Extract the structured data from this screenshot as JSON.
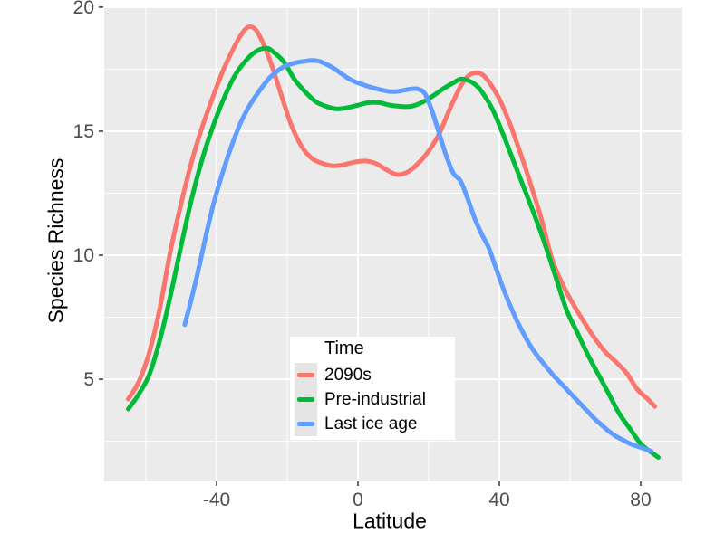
{
  "figure": {
    "background": "#FFFFFF",
    "panel_background": "#EBEBEB",
    "grid_color": "#FFFFFF",
    "tick_color": "#333333",
    "tick_label_color": "#4D4D4D",
    "axis_title_color": "#000000"
  },
  "chart_data": {
    "type": "line",
    "title": "",
    "xlabel": "Latitude",
    "ylabel": "Species Richness",
    "xlim": [
      -71.8,
      91.8
    ],
    "ylim": [
      0.88,
      19.96
    ],
    "x_ticks": [
      -40,
      0,
      40,
      80
    ],
    "x_minor_ticks": [
      -60,
      -20,
      20,
      60
    ],
    "y_ticks": [
      5,
      10,
      15,
      20
    ],
    "y_minor_ticks": [
      2.5,
      7.5,
      12.5,
      17.5
    ],
    "grid": "major-and-minor",
    "legend": {
      "title": "Time",
      "position": "inside bottom-center of panel"
    },
    "series": [
      {
        "name": "2090s",
        "color": "#F8766D",
        "points": [
          [
            -65,
            4.2
          ],
          [
            -62,
            4.9
          ],
          [
            -59,
            6.1
          ],
          [
            -56,
            7.9
          ],
          [
            -53,
            10.2
          ],
          [
            -50,
            12.1
          ],
          [
            -47,
            13.8
          ],
          [
            -44,
            15.2
          ],
          [
            -41,
            16.4
          ],
          [
            -38,
            17.5
          ],
          [
            -35,
            18.4
          ],
          [
            -33,
            18.9
          ],
          [
            -31,
            19.2
          ],
          [
            -29,
            19.1
          ],
          [
            -27,
            18.6
          ],
          [
            -25,
            17.9
          ],
          [
            -22,
            16.6
          ],
          [
            -19,
            15.3
          ],
          [
            -16,
            14.4
          ],
          [
            -13,
            13.9
          ],
          [
            -10,
            13.7
          ],
          [
            -7,
            13.6
          ],
          [
            -4,
            13.65
          ],
          [
            -1,
            13.75
          ],
          [
            2,
            13.8
          ],
          [
            5,
            13.7
          ],
          [
            8,
            13.45
          ],
          [
            11,
            13.25
          ],
          [
            14,
            13.35
          ],
          [
            17,
            13.7
          ],
          [
            20,
            14.2
          ],
          [
            23,
            14.9
          ],
          [
            26,
            15.9
          ],
          [
            29,
            16.8
          ],
          [
            31,
            17.2
          ],
          [
            33,
            17.35
          ],
          [
            35,
            17.3
          ],
          [
            37,
            17.0
          ],
          [
            40,
            16.3
          ],
          [
            43,
            15.3
          ],
          [
            46,
            14.1
          ],
          [
            49,
            12.8
          ],
          [
            52,
            11.4
          ],
          [
            55,
            9.8
          ],
          [
            58,
            8.8
          ],
          [
            61,
            8.0
          ],
          [
            64,
            7.3
          ],
          [
            67,
            6.65
          ],
          [
            70,
            6.1
          ],
          [
            73,
            5.7
          ],
          [
            76,
            5.25
          ],
          [
            79,
            4.6
          ],
          [
            82,
            4.2
          ],
          [
            84,
            3.9
          ]
        ]
      },
      {
        "name": "Pre-industrial",
        "color": "#00BA38",
        "points": [
          [
            -65,
            3.8
          ],
          [
            -62,
            4.4
          ],
          [
            -59,
            5.2
          ],
          [
            -56,
            6.6
          ],
          [
            -53,
            8.4
          ],
          [
            -50,
            10.4
          ],
          [
            -47,
            12.3
          ],
          [
            -44,
            13.9
          ],
          [
            -41,
            15.2
          ],
          [
            -38,
            16.3
          ],
          [
            -35,
            17.2
          ],
          [
            -32,
            17.8
          ],
          [
            -29,
            18.2
          ],
          [
            -26,
            18.35
          ],
          [
            -24,
            18.2
          ],
          [
            -21,
            17.8
          ],
          [
            -18,
            17.1
          ],
          [
            -15,
            16.6
          ],
          [
            -12,
            16.2
          ],
          [
            -9,
            16.0
          ],
          [
            -6,
            15.9
          ],
          [
            -3,
            15.95
          ],
          [
            0,
            16.05
          ],
          [
            3,
            16.15
          ],
          [
            6,
            16.15
          ],
          [
            9,
            16.05
          ],
          [
            12,
            16.0
          ],
          [
            15,
            16.0
          ],
          [
            18,
            16.15
          ],
          [
            21,
            16.4
          ],
          [
            24,
            16.7
          ],
          [
            27,
            16.95
          ],
          [
            29,
            17.1
          ],
          [
            31,
            17.05
          ],
          [
            33,
            16.9
          ],
          [
            35,
            16.6
          ],
          [
            38,
            15.9
          ],
          [
            41,
            14.9
          ],
          [
            44,
            13.8
          ],
          [
            47,
            12.7
          ],
          [
            50,
            11.6
          ],
          [
            53,
            10.4
          ],
          [
            56,
            9.1
          ],
          [
            59,
            7.8
          ],
          [
            62,
            6.9
          ],
          [
            65,
            6.0
          ],
          [
            68,
            5.2
          ],
          [
            71,
            4.4
          ],
          [
            74,
            3.6
          ],
          [
            77,
            3.0
          ],
          [
            80,
            2.4
          ],
          [
            83,
            2.05
          ],
          [
            85,
            1.85
          ]
        ]
      },
      {
        "name": "Last ice age",
        "color": "#619CFF",
        "points": [
          [
            -49,
            7.2
          ],
          [
            -47,
            8.3
          ],
          [
            -45,
            9.5
          ],
          [
            -43,
            10.8
          ],
          [
            -41,
            12.0
          ],
          [
            -39,
            13.0
          ],
          [
            -37,
            13.9
          ],
          [
            -35,
            14.7
          ],
          [
            -33,
            15.4
          ],
          [
            -31,
            15.95
          ],
          [
            -29,
            16.4
          ],
          [
            -27,
            16.8
          ],
          [
            -25,
            17.15
          ],
          [
            -23,
            17.4
          ],
          [
            -21,
            17.6
          ],
          [
            -19,
            17.7
          ],
          [
            -17,
            17.78
          ],
          [
            -15,
            17.82
          ],
          [
            -13,
            17.85
          ],
          [
            -11,
            17.82
          ],
          [
            -9,
            17.7
          ],
          [
            -7,
            17.55
          ],
          [
            -5,
            17.35
          ],
          [
            -3,
            17.15
          ],
          [
            -1,
            17.0
          ],
          [
            1,
            16.9
          ],
          [
            3,
            16.8
          ],
          [
            5,
            16.72
          ],
          [
            7,
            16.65
          ],
          [
            9,
            16.6
          ],
          [
            11,
            16.6
          ],
          [
            13,
            16.65
          ],
          [
            15,
            16.7
          ],
          [
            17,
            16.7
          ],
          [
            19,
            16.5
          ],
          [
            21,
            15.8
          ],
          [
            23,
            14.9
          ],
          [
            25,
            14.0
          ],
          [
            27,
            13.3
          ],
          [
            29,
            13.0
          ],
          [
            31,
            12.3
          ],
          [
            33,
            11.5
          ],
          [
            35,
            10.85
          ],
          [
            37,
            10.3
          ],
          [
            39,
            9.5
          ],
          [
            41,
            8.7
          ],
          [
            43,
            8.0
          ],
          [
            45,
            7.35
          ],
          [
            47,
            6.8
          ],
          [
            49,
            6.3
          ],
          [
            51,
            5.9
          ],
          [
            53,
            5.55
          ],
          [
            55,
            5.2
          ],
          [
            57,
            4.9
          ],
          [
            59,
            4.6
          ],
          [
            61,
            4.3
          ],
          [
            63,
            4.0
          ],
          [
            65,
            3.7
          ],
          [
            67,
            3.4
          ],
          [
            69,
            3.15
          ],
          [
            71,
            2.9
          ],
          [
            73,
            2.7
          ],
          [
            75,
            2.55
          ],
          [
            77,
            2.4
          ],
          [
            79,
            2.3
          ],
          [
            81,
            2.2
          ],
          [
            83,
            2.1
          ]
        ]
      }
    ]
  }
}
